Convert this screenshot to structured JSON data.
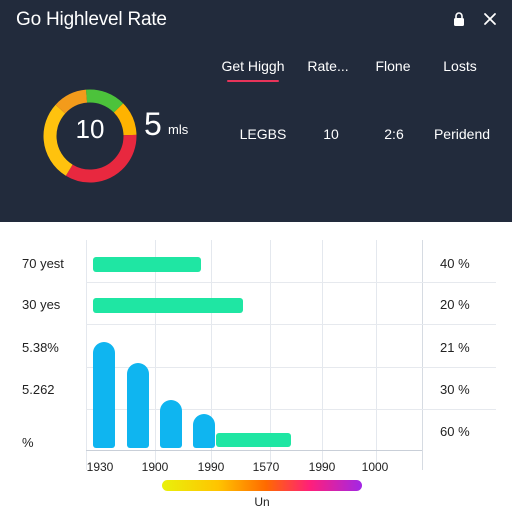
{
  "header": {
    "title": "Go Highlevel Rate",
    "tabs": [
      {
        "label": "Get Higgh",
        "active": true
      },
      {
        "label": "Rate..."
      },
      {
        "label": "Flone"
      },
      {
        "label": "Losts"
      }
    ],
    "gauge": {
      "value": "10",
      "segments": [
        {
          "color": "#4cc23b",
          "fraction": 0.14
        },
        {
          "color": "#ffb300",
          "fraction": 0.12
        },
        {
          "color": "#e8283f",
          "fraction": 0.34
        },
        {
          "color": "#ffc20e",
          "fraction": 0.28
        },
        {
          "color": "#f39b1b",
          "fraction": 0.12
        }
      ]
    },
    "big_number": "5",
    "big_unit": "mls",
    "stats": [
      "LEGBS",
      "10",
      "2:6",
      "Peridend"
    ],
    "icons": [
      "lock-icon",
      "close-icon"
    ]
  },
  "chart_data": {
    "type": "bar",
    "row_labels": [
      "70 yest",
      "30 yes",
      "5.38%",
      "5.262",
      "%"
    ],
    "row_percents": [
      "40 %",
      "20 %",
      "21 %",
      "30 %",
      "60 %"
    ],
    "x_ticks": [
      "1930",
      "1900",
      "1990",
      "1570",
      "1990",
      "1000"
    ],
    "horizontal_bars": [
      {
        "row": "70 yest",
        "start_tick": 0,
        "end_fraction": 0.36,
        "color": "#1fe6a3"
      },
      {
        "row": "30 yes",
        "start_tick": 0,
        "end_fraction": 0.5,
        "color": "#1fe6a3"
      },
      {
        "row": "%",
        "start_fraction": 0.41,
        "end_fraction": 0.66,
        "color": "#1fe6a3"
      }
    ],
    "vertical_bars": [
      {
        "x_tick": "1930",
        "level": 0.46,
        "color": "#0fb5f0"
      },
      {
        "x_tick": "1900",
        "level": 0.37,
        "color": "#0fb5f0"
      },
      {
        "x_tick": "1990",
        "level": 0.21,
        "color": "#0fb5f0"
      },
      {
        "x_tick": "1570",
        "level": 0.15,
        "color": "#0fb5f0"
      }
    ],
    "colorbar_label": "Un"
  }
}
